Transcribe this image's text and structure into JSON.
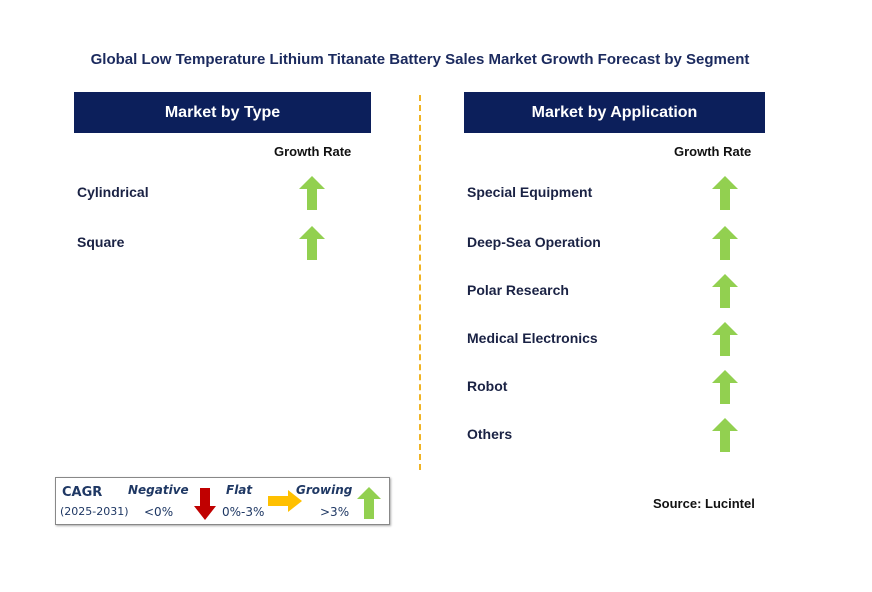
{
  "title": "Global Low Temperature Lithium Titanate Battery Sales Market Growth Forecast by Segment",
  "chart_data": {
    "type": "table",
    "title": "Global Low Temperature Lithium Titanate Battery Sales Market Growth Forecast by Segment",
    "panels": [
      {
        "header": "Market by Type",
        "column": "Growth Rate",
        "rows": [
          {
            "label": "Cylindrical",
            "trend": "growing"
          },
          {
            "label": "Square",
            "trend": "growing"
          }
        ]
      },
      {
        "header": "Market by Application",
        "column": "Growth Rate",
        "rows": [
          {
            "label": "Special Equipment",
            "trend": "growing"
          },
          {
            "label": "Deep-Sea Operation",
            "trend": "growing"
          },
          {
            "label": "Polar Research",
            "trend": "growing"
          },
          {
            "label": "Medical Electronics",
            "trend": "growing"
          },
          {
            "label": "Robot",
            "trend": "growing"
          },
          {
            "label": "Others",
            "trend": "growing"
          }
        ]
      }
    ]
  },
  "legend": {
    "cagr": "CAGR",
    "period": "(2025-2031)",
    "negative": "Negative",
    "negative_range": "<0%",
    "flat": "Flat",
    "flat_range": "0%-3%",
    "growing": "Growing",
    "growing_range": ">3%"
  },
  "source": "Source: Lucintel",
  "colors": {
    "header": "#0c1f5b",
    "growing": "#92d050",
    "flat": "#ffc000",
    "negative": "#c00000",
    "divider": "#f0b323"
  }
}
